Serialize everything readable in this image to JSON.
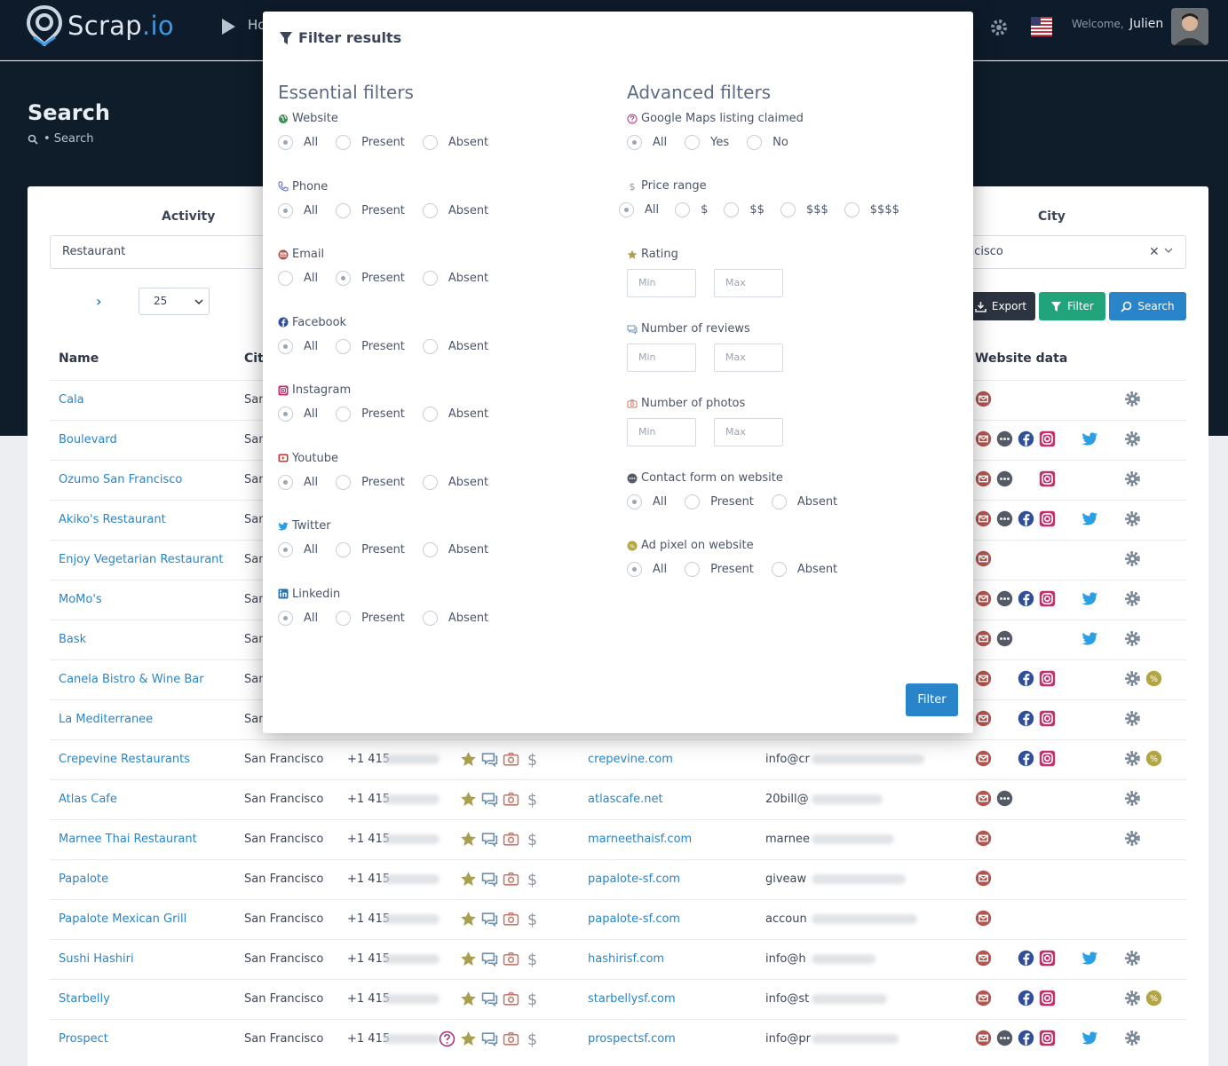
{
  "app": {
    "logo_text_main": "Scrap",
    "logo_text_suffix": ".io",
    "nav_home": "Ho",
    "welcome": "Welcome,",
    "user_name": "Julien",
    "page_title": "Search",
    "breadcrumb": "• Search"
  },
  "search_form": {
    "activity_label": "Activity",
    "activity_value": "Restaurant",
    "city_label": "City",
    "city_value": "ncisco",
    "per_page": "25",
    "export_label": "Export",
    "filter_label": "Filter",
    "search_label": "Search"
  },
  "table": {
    "headers": {
      "name": "Name",
      "city": "Cit",
      "website_data": "Website data"
    },
    "rows": [
      {
        "name": "Cala",
        "city": "San",
        "phone": "",
        "website": "",
        "email": "",
        "rating_icons": false,
        "wd": [
          "email",
          "gear"
        ]
      },
      {
        "name": "Boulevard",
        "city": "San",
        "phone": "",
        "website": "",
        "email": "",
        "rating_icons": false,
        "wd": [
          "email",
          "dots",
          "facebook",
          "instagram",
          "twitter",
          "gear"
        ]
      },
      {
        "name": "Ozumo San Francisco",
        "city": "San",
        "phone": "",
        "website": "",
        "email": "",
        "rating_icons": false,
        "wd": [
          "email",
          "dots",
          "instagram",
          "gear"
        ]
      },
      {
        "name": "Akiko's Restaurant",
        "city": "San",
        "phone": "",
        "website": "",
        "email": "",
        "rating_icons": false,
        "wd": [
          "email",
          "dots",
          "facebook",
          "instagram",
          "twitter",
          "gear"
        ]
      },
      {
        "name": "Enjoy Vegetarian Restaurant",
        "city": "San",
        "phone": "",
        "website": "",
        "email": "",
        "rating_icons": false,
        "wd": [
          "email",
          "gear"
        ]
      },
      {
        "name": "MoMo's",
        "city": "San",
        "phone": "",
        "website": "",
        "email": "",
        "rating_icons": false,
        "wd": [
          "email",
          "dots",
          "facebook",
          "instagram",
          "twitter",
          "gear"
        ]
      },
      {
        "name": "Bask",
        "city": "San",
        "phone": "",
        "website": "",
        "email": "",
        "rating_icons": false,
        "wd": [
          "email",
          "dots",
          "twitter",
          "gear"
        ]
      },
      {
        "name": "Canela Bistro & Wine Bar",
        "city": "San",
        "phone": "",
        "website": "",
        "email": "",
        "rating_icons": false,
        "wd": [
          "email",
          "facebook",
          "instagram",
          "gear",
          "pixel"
        ]
      },
      {
        "name": "La Mediterranee",
        "city": "San",
        "phone": "",
        "website": "",
        "email": "",
        "rating_icons": false,
        "wd": [
          "email",
          "facebook",
          "instagram",
          "gear"
        ]
      },
      {
        "name": "Crepevine Restaurants",
        "city": "San Francisco",
        "phone": "+1 415",
        "website": "crepevine.com",
        "email": "info@cr",
        "rating_icons": true,
        "wd": [
          "email",
          "facebook",
          "instagram",
          "gear",
          "pixel"
        ]
      },
      {
        "name": "Atlas Cafe",
        "city": "San Francisco",
        "phone": "+1 415",
        "website": "atlascafe.net",
        "email": "20bill@",
        "rating_icons": true,
        "wd": [
          "email",
          "dots",
          "gear"
        ]
      },
      {
        "name": "Marnee Thai Restaurant",
        "city": "San Francisco",
        "phone": "+1 415",
        "website": "marneethaisf.com",
        "email": "marnee",
        "rating_icons": true,
        "wd": [
          "email",
          "gear"
        ]
      },
      {
        "name": "Papalote",
        "city": "San Francisco",
        "phone": "+1 415",
        "website": "papalote-sf.com",
        "email": "giveaw",
        "rating_icons": true,
        "wd": [
          "email"
        ]
      },
      {
        "name": "Papalote Mexican Grill",
        "city": "San Francisco",
        "phone": "+1 415",
        "website": "papalote-sf.com",
        "email": "accoun",
        "rating_icons": true,
        "wd": [
          "email"
        ]
      },
      {
        "name": "Sushi Hashiri",
        "city": "San Francisco",
        "phone": "+1 415",
        "website": "hashirisf.com",
        "email": "info@h",
        "rating_icons": true,
        "wd": [
          "email",
          "facebook",
          "instagram",
          "twitter",
          "gear"
        ]
      },
      {
        "name": "Starbelly",
        "city": "San Francisco",
        "phone": "+1 415",
        "website": "starbellysf.com",
        "email": "info@st",
        "rating_icons": true,
        "wd": [
          "email",
          "facebook",
          "instagram",
          "gear",
          "pixel"
        ]
      },
      {
        "name": "Prospect",
        "city": "San Francisco",
        "phone": "+1 415",
        "website": "prospectsf.com",
        "email": "info@pr",
        "rating_icons": true,
        "claimed": true,
        "wd": [
          "email",
          "dots",
          "facebook",
          "instagram",
          "twitter",
          "gear"
        ]
      }
    ]
  },
  "modal": {
    "title": "Filter results",
    "essential_title": "Essential filters",
    "advanced_title": "Advanced filters",
    "essential": [
      {
        "label": "Website",
        "icon": "globe-icon",
        "options": [
          "All",
          "Present",
          "Absent"
        ],
        "selected": "All"
      },
      {
        "label": "Phone",
        "icon": "phone-icon",
        "options": [
          "All",
          "Present",
          "Absent"
        ],
        "selected": "All"
      },
      {
        "label": "Email",
        "icon": "email-icon",
        "options": [
          "All",
          "Present",
          "Absent"
        ],
        "selected": "Present"
      },
      {
        "label": "Facebook",
        "icon": "facebook-icon",
        "options": [
          "All",
          "Present",
          "Absent"
        ],
        "selected": "All"
      },
      {
        "label": "Instagram",
        "icon": "instagram-icon",
        "options": [
          "All",
          "Present",
          "Absent"
        ],
        "selected": "All"
      },
      {
        "label": "Youtube",
        "icon": "youtube-icon",
        "options": [
          "All",
          "Present",
          "Absent"
        ],
        "selected": "All"
      },
      {
        "label": "Twitter",
        "icon": "twitter-icon",
        "options": [
          "All",
          "Present",
          "Absent"
        ],
        "selected": "All"
      },
      {
        "label": "Linkedin",
        "icon": "linkedin-icon",
        "options": [
          "All",
          "Present",
          "Absent"
        ],
        "selected": "All"
      }
    ],
    "advanced": {
      "claimed": {
        "label": "Google Maps listing claimed",
        "options": [
          "All",
          "Yes",
          "No"
        ],
        "selected": "All"
      },
      "price": {
        "label": "Price range",
        "options": [
          "All",
          "$",
          "$$",
          "$$$",
          "$$$$"
        ],
        "selected": "All"
      },
      "rating": {
        "label": "Rating",
        "min": "Min",
        "max": "Max"
      },
      "reviews": {
        "label": "Number of reviews",
        "min": "Min",
        "max": "Max"
      },
      "photos": {
        "label": "Number of photos",
        "min": "Min",
        "max": "Max"
      },
      "contact_form": {
        "label": "Contact form on website",
        "options": [
          "All",
          "Present",
          "Absent"
        ],
        "selected": "All"
      },
      "ad_pixel": {
        "label": "Ad pixel on website",
        "options": [
          "All",
          "Present",
          "Absent"
        ],
        "selected": "All"
      }
    },
    "submit_label": "Filter"
  },
  "colors": {
    "navbar": "#0e1b2a",
    "accent_blue": "#2a84c9",
    "filter_green": "#21a47a",
    "email_red": "#b5544f",
    "facebook": "#2f4f9a",
    "instagram": "#c2306f",
    "twitter": "#2b9fe6",
    "pixel": "#b3a542"
  }
}
